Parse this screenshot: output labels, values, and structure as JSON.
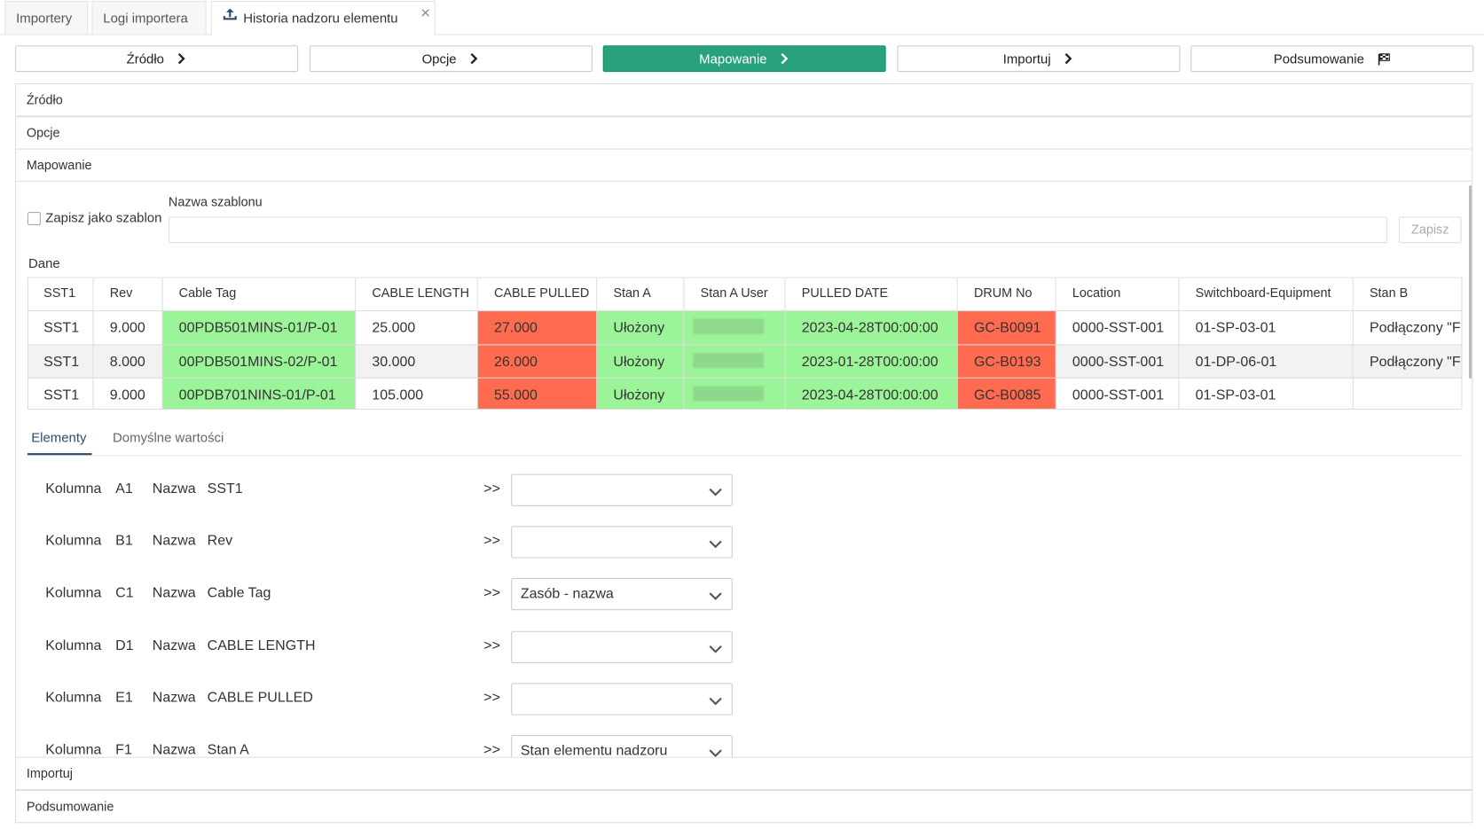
{
  "tabs": [
    "Importery",
    "Logi importera",
    "Historia nadzoru elementu"
  ],
  "steps": [
    "Źródło",
    "Opcje",
    "Mapowanie",
    "Importuj",
    "Podsumowanie"
  ],
  "sections": [
    "Źródło",
    "Opcje",
    "Mapowanie",
    "Importuj",
    "Podsumowanie"
  ],
  "template": {
    "checkbox_label": "Zapisz jako szablon",
    "name_label": "Nazwa szablonu",
    "save": "Zapisz"
  },
  "data_label": "Dane",
  "table": {
    "headers": [
      "SST1",
      "Rev",
      "Cable Tag",
      "CABLE LENGTH",
      "CABLE PULLED",
      "Stan A",
      "Stan A User",
      "PULLED DATE",
      "DRUM No",
      "Location",
      "Switchboard-Equipment",
      "Stan B"
    ],
    "rows": [
      [
        "SST1",
        "9.000",
        "00PDB501MINS-01/P-01",
        "25.000",
        "27.000",
        "Ułożony",
        null,
        "2023-04-28T00:00:00",
        "GC-B0091",
        "0000-SST-001",
        "01-SP-03-01",
        "Podłączony \"F"
      ],
      [
        "SST1",
        "8.000",
        "00PDB501MINS-02/P-01",
        "30.000",
        "26.000",
        "Ułożony",
        null,
        "2023-01-28T00:00:00",
        "GC-B0193",
        "0000-SST-001",
        "01-DP-06-01",
        "Podłączony \"F"
      ],
      [
        "SST1",
        "9.000",
        "00PDB701NINS-01/P-01",
        "105.000",
        "55.000",
        "Ułożony",
        null,
        "2023-04-28T00:00:00",
        "GC-B0085",
        "0000-SST-001",
        "01-SP-03-01",
        null
      ]
    ]
  },
  "subtabs": [
    "Elementy",
    "Domyślne wartości"
  ],
  "mapping_labels": {
    "column": "Kolumna",
    "name": "Nazwa",
    "arrow": ">>"
  },
  "mappings": [
    {
      "column": "A1",
      "name": "SST1",
      "value": null
    },
    {
      "column": "B1",
      "name": "Rev",
      "value": null
    },
    {
      "column": "C1",
      "name": "Cable Tag",
      "value": "Zasób - nazwa"
    },
    {
      "column": "D1",
      "name": "CABLE LENGTH",
      "value": null
    },
    {
      "column": "E1",
      "name": "CABLE PULLED",
      "value": null
    },
    {
      "column": "F1",
      "name": "Stan A",
      "value": "Stan elementu nadzoru"
    }
  ]
}
